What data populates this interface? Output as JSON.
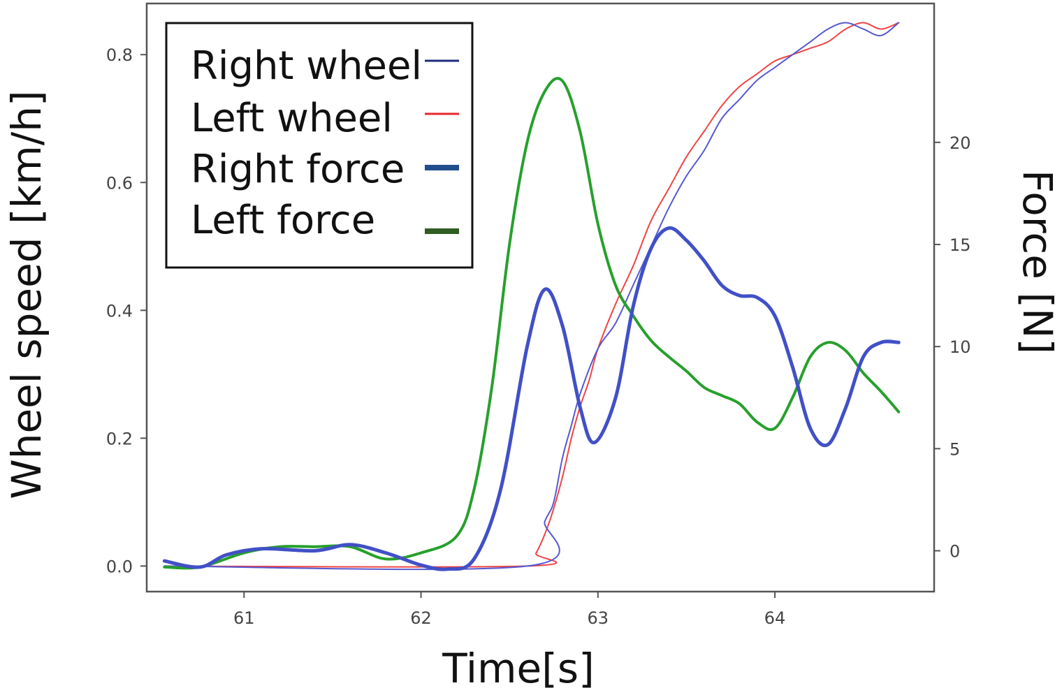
{
  "chart_data": {
    "type": "line",
    "title": "",
    "xlabel": "Time[s]",
    "ylabel": "Wheel speed [km/h]",
    "y2label": "Force [N]",
    "xlim": [
      60.45,
      64.9
    ],
    "ylim": [
      -0.04,
      0.88
    ],
    "y2lim": [
      -2.0,
      26.8
    ],
    "xticks": [
      "61",
      "62",
      "63",
      "64"
    ],
    "yticks": [
      "0.0",
      "0.2",
      "0.4",
      "0.6",
      "0.8"
    ],
    "y2ticks": [
      "0",
      "5",
      "10",
      "15",
      "20"
    ],
    "grid": false,
    "legend_position": "top-left",
    "legend": [
      {
        "label": "Right wheel",
        "color": "#1e2a7a",
        "width": 3
      },
      {
        "label": "Left wheel",
        "color": "#e8262e",
        "width": 3
      },
      {
        "label": "Right  force",
        "color": "#1f4e8c",
        "width": 8
      },
      {
        "label": "Left force",
        "color": "#2f5d22",
        "width": 8
      }
    ],
    "series": [
      {
        "name": "Right wheel",
        "axis": "left",
        "color": "#5558d0",
        "width": 2,
        "x": [
          60.55,
          62.6,
          62.7,
          62.75,
          62.8,
          62.85,
          62.9,
          63.0,
          63.1,
          63.2,
          63.3,
          63.4,
          63.5,
          63.6,
          63.7,
          63.8,
          63.9,
          64.0,
          64.1,
          64.2,
          64.3,
          64.4,
          64.5,
          64.6,
          64.7
        ],
        "y": [
          0.0,
          0.0,
          0.07,
          0.1,
          0.17,
          0.22,
          0.27,
          0.34,
          0.38,
          0.44,
          0.5,
          0.56,
          0.61,
          0.65,
          0.7,
          0.73,
          0.76,
          0.78,
          0.8,
          0.82,
          0.84,
          0.85,
          0.84,
          0.83,
          0.85
        ]
      },
      {
        "name": "Left wheel",
        "axis": "left",
        "color": "#ee4444",
        "width": 2,
        "x": [
          60.55,
          62.6,
          62.65,
          62.7,
          62.75,
          62.8,
          62.85,
          62.9,
          62.95,
          63.0,
          63.1,
          63.2,
          63.3,
          63.4,
          63.5,
          63.6,
          63.7,
          63.8,
          63.9,
          64.0,
          64.1,
          64.2,
          64.3,
          64.4,
          64.5,
          64.6,
          64.7
        ],
        "y": [
          0.0,
          0.0,
          0.02,
          0.05,
          0.09,
          0.14,
          0.2,
          0.25,
          0.29,
          0.34,
          0.41,
          0.47,
          0.54,
          0.59,
          0.64,
          0.68,
          0.72,
          0.75,
          0.77,
          0.79,
          0.8,
          0.81,
          0.82,
          0.84,
          0.85,
          0.84,
          0.85
        ]
      },
      {
        "name": "Right  force",
        "axis": "right",
        "color": "#4150c6",
        "width": 5,
        "x": [
          60.55,
          60.75,
          60.9,
          61.1,
          61.4,
          61.6,
          61.8,
          62.0,
          62.15,
          62.3,
          62.45,
          62.6,
          62.7,
          62.8,
          62.9,
          62.98,
          63.1,
          63.2,
          63.3,
          63.4,
          63.5,
          63.6,
          63.7,
          63.8,
          63.9,
          64.0,
          64.1,
          64.2,
          64.3,
          64.4,
          64.5,
          64.6,
          64.7
        ],
        "y": [
          -0.5,
          -0.8,
          -0.2,
          0.1,
          0.0,
          0.3,
          -0.1,
          -0.7,
          -0.9,
          -0.4,
          3.0,
          10.0,
          12.8,
          11.0,
          7.0,
          5.3,
          7.5,
          12.0,
          14.8,
          15.8,
          15.2,
          14.2,
          13.0,
          12.5,
          12.4,
          11.5,
          9.0,
          6.0,
          5.2,
          7.0,
          9.5,
          10.2,
          10.2
        ]
      },
      {
        "name": "Left force",
        "axis": "right",
        "color": "#27a02c",
        "width": 4,
        "x": [
          60.55,
          60.75,
          61.0,
          61.2,
          61.4,
          61.6,
          61.8,
          62.0,
          62.2,
          62.3,
          62.4,
          62.5,
          62.6,
          62.7,
          62.8,
          62.9,
          63.0,
          63.1,
          63.2,
          63.3,
          63.4,
          63.5,
          63.6,
          63.7,
          63.8,
          63.9,
          64.0,
          64.1,
          64.2,
          64.3,
          64.4,
          64.5,
          64.6,
          64.7
        ],
        "y": [
          -0.8,
          -0.8,
          -0.1,
          0.2,
          0.2,
          0.2,
          -0.4,
          -0.1,
          0.7,
          3.0,
          8.0,
          15.0,
          20.0,
          22.5,
          23.0,
          20.5,
          16.0,
          13.0,
          11.5,
          10.3,
          9.5,
          8.8,
          8.0,
          7.6,
          7.2,
          6.3,
          6.0,
          7.5,
          9.5,
          10.2,
          9.8,
          8.7,
          7.8,
          6.8
        ]
      }
    ]
  }
}
